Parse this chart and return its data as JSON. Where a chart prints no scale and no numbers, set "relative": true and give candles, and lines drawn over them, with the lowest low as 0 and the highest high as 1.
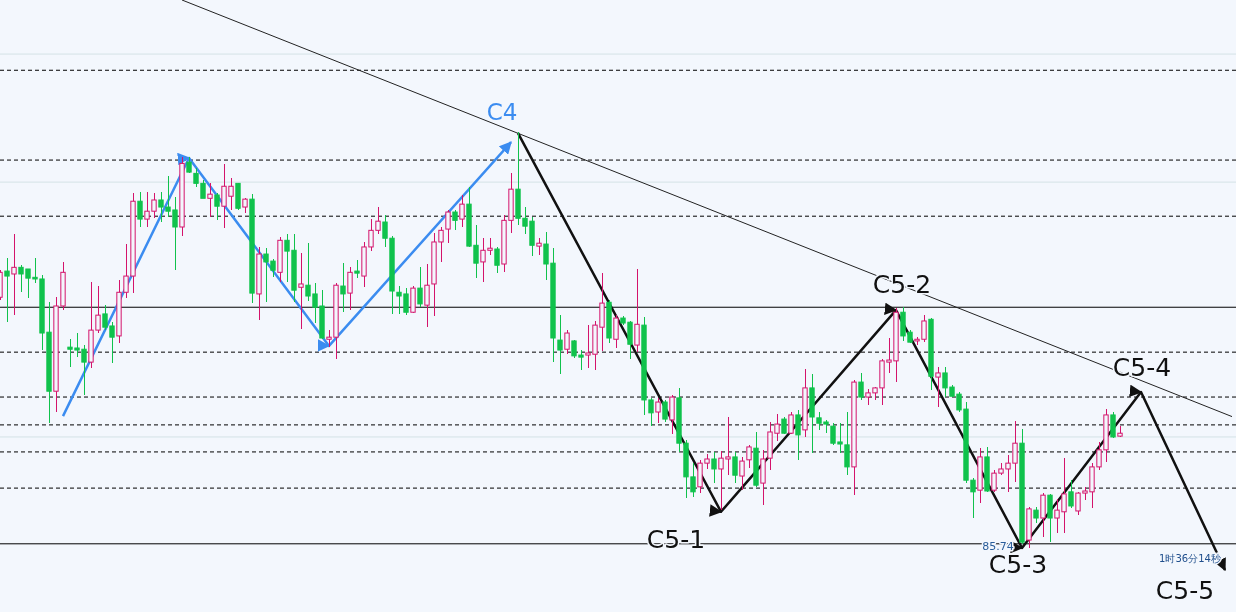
{
  "chart_data": {
    "type": "candlestick",
    "relative": true,
    "categories": [
      null,
      null,
      null,
      null,
      null,
      null,
      null,
      null,
      null,
      null,
      null,
      null,
      null,
      null,
      null,
      null,
      null,
      null,
      null,
      null,
      null,
      null,
      null,
      null,
      null,
      null,
      null,
      null,
      null,
      null,
      null,
      null,
      null,
      null,
      null,
      null,
      null,
      null,
      null,
      null,
      null,
      null,
      null,
      null,
      null,
      null,
      null,
      null,
      null,
      null,
      null,
      null,
      null,
      null,
      null,
      null,
      null,
      null,
      null,
      null,
      null,
      null,
      null,
      null,
      null,
      null,
      null,
      null,
      null,
      null,
      null,
      null,
      null,
      null,
      null,
      null,
      null,
      null,
      null,
      null,
      null,
      null,
      null,
      null,
      null,
      null,
      null,
      null,
      null,
      null,
      null,
      null,
      null,
      null,
      null,
      null,
      null,
      null,
      null,
      null,
      null,
      null,
      null,
      null,
      null,
      null,
      null,
      null,
      null,
      null,
      null,
      null,
      null,
      null,
      null,
      null,
      null,
      null,
      null,
      null,
      null,
      null,
      null,
      null,
      null,
      null,
      null,
      null,
      null,
      null,
      null,
      null,
      null,
      null,
      null,
      null,
      null,
      null,
      null,
      null,
      null,
      null,
      null,
      null,
      null,
      null,
      null,
      null,
      null,
      null,
      null,
      null,
      null,
      null,
      null,
      null,
      null,
      null,
      null,
      null,
      null,
      null,
      null,
      null,
      null,
      null,
      null,
      null,
      null,
      null,
      null,
      null,
      null,
      null,
      null,
      null,
      null
    ],
    "ohlc": [
      [
        0.603,
        0.668,
        0.596,
        0.663
      ],
      [
        0.666,
        0.697,
        0.543,
        0.654
      ],
      [
        0.659,
        0.755,
        0.56,
        0.675
      ],
      [
        0.675,
        0.68,
        0.615,
        0.659
      ],
      [
        0.671,
        0.671,
        0.601,
        0.649
      ],
      [
        0.651,
        0.697,
        0.637,
        0.647
      ],
      [
        0.647,
        0.656,
        0.476,
        0.517
      ],
      [
        0.519,
        0.591,
        0.3,
        0.377
      ],
      [
        0.377,
        0.603,
        0.327,
        0.582
      ],
      [
        0.582,
        0.688,
        0.572,
        0.663
      ],
      [
        0.483,
        0.502,
        0.435,
        0.478
      ],
      [
        0.481,
        0.517,
        0.459,
        0.476
      ],
      [
        0.478,
        0.488,
        0.368,
        0.447
      ],
      [
        0.447,
        0.639,
        0.433,
        0.524
      ],
      [
        0.524,
        0.63,
        0.517,
        0.56
      ],
      [
        0.563,
        0.584,
        0.524,
        0.531
      ],
      [
        0.534,
        0.543,
        0.445,
        0.507
      ],
      [
        0.51,
        0.644,
        0.493,
        0.615
      ],
      [
        0.615,
        0.731,
        0.601,
        0.654
      ],
      [
        0.654,
        0.853,
        0.613,
        0.834
      ],
      [
        0.834,
        0.856,
        0.772,
        0.791
      ],
      [
        0.791,
        0.856,
        0.772,
        0.81
      ],
      [
        0.81,
        0.853,
        0.793,
        0.837
      ],
      [
        0.837,
        0.856,
        0.784,
        0.82
      ],
      [
        0.82,
        0.894,
        0.796,
        0.81
      ],
      [
        0.813,
        0.844,
        0.668,
        0.772
      ],
      [
        0.772,
        0.94,
        0.75,
        0.925
      ],
      [
        0.928,
        0.94,
        0.901,
        0.904
      ],
      [
        0.901,
        0.913,
        0.868,
        0.877
      ],
      [
        0.877,
        0.885,
        0.841,
        0.841
      ],
      [
        0.841,
        0.877,
        0.796,
        0.851
      ],
      [
        0.849,
        0.853,
        0.788,
        0.822
      ],
      [
        0.822,
        0.923,
        0.769,
        0.87
      ],
      [
        0.846,
        0.889,
        0.813,
        0.87
      ],
      [
        0.877,
        0.877,
        0.813,
        0.817
      ],
      [
        0.82,
        0.841,
        0.805,
        0.839
      ],
      [
        0.839,
        0.851,
        0.589,
        0.613
      ],
      [
        0.611,
        0.724,
        0.548,
        0.707
      ],
      [
        0.707,
        0.721,
        0.591,
        0.688
      ],
      [
        0.69,
        0.695,
        0.651,
        0.668
      ],
      [
        0.663,
        0.748,
        0.639,
        0.74
      ],
      [
        0.74,
        0.755,
        0.639,
        0.714
      ],
      [
        0.716,
        0.755,
        0.591,
        0.62
      ],
      [
        0.627,
        0.709,
        0.526,
        0.635
      ],
      [
        0.632,
        0.733,
        0.594,
        0.606
      ],
      [
        0.611,
        0.637,
        0.541,
        0.579
      ],
      [
        0.582,
        0.62,
        0.502,
        0.505
      ],
      [
        0.502,
        0.524,
        0.483,
        0.507
      ],
      [
        0.507,
        0.637,
        0.454,
        0.632
      ],
      [
        0.63,
        0.685,
        0.567,
        0.611
      ],
      [
        0.613,
        0.675,
        0.572,
        0.663
      ],
      [
        0.666,
        0.692,
        0.649,
        0.661
      ],
      [
        0.654,
        0.736,
        0.627,
        0.724
      ],
      [
        0.724,
        0.791,
        0.714,
        0.764
      ],
      [
        0.764,
        0.82,
        0.755,
        0.786
      ],
      [
        0.784,
        0.8,
        0.724,
        0.745
      ],
      [
        0.745,
        0.75,
        0.563,
        0.618
      ],
      [
        0.615,
        0.63,
        0.563,
        0.606
      ],
      [
        0.611,
        0.625,
        0.56,
        0.567
      ],
      [
        0.567,
        0.63,
        0.565,
        0.625
      ],
      [
        0.625,
        0.675,
        0.579,
        0.587
      ],
      [
        0.584,
        0.683,
        0.531,
        0.632
      ],
      [
        0.635,
        0.757,
        0.558,
        0.736
      ],
      [
        0.736,
        0.772,
        0.688,
        0.764
      ],
      [
        0.767,
        0.813,
        0.733,
        0.808
      ],
      [
        0.808,
        0.813,
        0.764,
        0.788
      ],
      [
        0.791,
        0.849,
        0.772,
        0.827
      ],
      [
        0.827,
        0.868,
        0.724,
        0.726
      ],
      [
        0.728,
        0.776,
        0.649,
        0.685
      ],
      [
        0.688,
        0.745,
        0.639,
        0.716
      ],
      [
        0.716,
        0.745,
        0.704,
        0.721
      ],
      [
        0.719,
        0.724,
        0.661,
        0.68
      ],
      [
        0.683,
        0.8,
        0.663,
        0.788
      ],
      [
        0.788,
        0.901,
        0.757,
        0.863
      ],
      [
        0.863,
        1,
        0.776,
        0.793
      ],
      [
        0.793,
        0.82,
        0.755,
        0.774
      ],
      [
        0.786,
        0.796,
        0.702,
        0.728
      ],
      [
        0.726,
        0.745,
        0.704,
        0.733
      ],
      [
        0.731,
        0.76,
        0.644,
        0.683
      ],
      [
        0.685,
        0.721,
        0.447,
        0.505
      ],
      [
        0.5,
        0.56,
        0.418,
        0.476
      ],
      [
        0.478,
        0.524,
        0.466,
        0.517
      ],
      [
        0.498,
        0.5,
        0.457,
        0.462
      ],
      [
        0.464,
        0.476,
        0.428,
        0.459
      ],
      [
        0.464,
        0.536,
        0.433,
        0.469
      ],
      [
        0.466,
        0.546,
        0.428,
        0.536
      ],
      [
        0.531,
        0.661,
        0.474,
        0.589
      ],
      [
        0.591,
        0.596,
        0.493,
        0.505
      ],
      [
        0.502,
        0.56,
        0.481,
        0.553
      ],
      [
        0.553,
        0.558,
        0.536,
        0.541
      ],
      [
        0.543,
        0.546,
        0.454,
        0.49
      ],
      [
        0.488,
        0.671,
        0.471,
        0.538
      ],
      [
        0.536,
        0.555,
        0.32,
        0.356
      ],
      [
        0.356,
        0.361,
        0.293,
        0.325
      ],
      [
        0.327,
        0.361,
        0.3,
        0.351
      ],
      [
        0.351,
        0.356,
        0.303,
        0.31
      ],
      [
        0.308,
        0.368,
        0.274,
        0.363
      ],
      [
        0.361,
        0.385,
        0.231,
        0.252
      ],
      [
        0.252,
        0.26,
        0.12,
        0.171
      ],
      [
        0.171,
        0.204,
        0.123,
        0.135
      ],
      [
        0.147,
        0.212,
        0.132,
        0.204
      ],
      [
        0.204,
        0.226,
        0.19,
        0.214
      ],
      [
        0.214,
        0.231,
        0.156,
        0.19
      ],
      [
        0.19,
        0.233,
        0.091,
        0.216
      ],
      [
        0.214,
        0.315,
        0.175,
        0.219
      ],
      [
        0.219,
        0.231,
        0.156,
        0.175
      ],
      [
        0.173,
        0.219,
        0.139,
        0.209
      ],
      [
        0.212,
        0.248,
        0.192,
        0.243
      ],
      [
        0.24,
        0.279,
        0.147,
        0.151
      ],
      [
        0.156,
        0.236,
        0.103,
        0.214
      ],
      [
        0.216,
        0.303,
        0.188,
        0.279
      ],
      [
        0.276,
        0.322,
        0.257,
        0.298
      ],
      [
        0.31,
        0.315,
        0.274,
        0.276
      ],
      [
        0.276,
        0.327,
        0.274,
        0.32
      ],
      [
        0.32,
        0.332,
        0.212,
        0.272
      ],
      [
        0.284,
        0.43,
        0.267,
        0.385
      ],
      [
        0.385,
        0.418,
        0.228,
        0.315
      ],
      [
        0.313,
        0.327,
        0.284,
        0.3
      ],
      [
        0.303,
        0.308,
        0.276,
        0.298
      ],
      [
        0.293,
        0.3,
        0.248,
        0.252
      ],
      [
        0.255,
        0.3,
        0.228,
        0.25
      ],
      [
        0.248,
        0.327,
        0.175,
        0.195
      ],
      [
        0.195,
        0.404,
        0.127,
        0.399
      ],
      [
        0.399,
        0.421,
        0.356,
        0.363
      ],
      [
        0.363,
        0.382,
        0.344,
        0.373
      ],
      [
        0.373,
        0.387,
        0.356,
        0.385
      ],
      [
        0.385,
        0.454,
        0.344,
        0.45
      ],
      [
        0.447,
        0.505,
        0.421,
        0.452
      ],
      [
        0.45,
        0.577,
        0.399,
        0.567
      ],
      [
        0.567,
        0.579,
        0.498,
        0.51
      ],
      [
        0.519,
        0.524,
        0.493,
        0.495
      ],
      [
        0.498,
        0.507,
        0.488,
        0.502
      ],
      [
        0.502,
        0.56,
        0.495,
        0.546
      ],
      [
        0.55,
        0.553,
        0.38,
        0.413
      ],
      [
        0.411,
        0.435,
        0.339,
        0.421
      ],
      [
        0.421,
        0.435,
        0.363,
        0.385
      ],
      [
        0.387,
        0.392,
        0.363,
        0.365
      ],
      [
        0.37,
        0.375,
        0.327,
        0.332
      ],
      [
        0.334,
        0.351,
        0.156,
        0.163
      ],
      [
        0.163,
        0.168,
        0.072,
        0.135
      ],
      [
        0.139,
        0.24,
        0.108,
        0.219
      ],
      [
        0.219,
        0.243,
        0.135,
        0.137
      ],
      [
        0.139,
        0.188,
        0.135,
        0.18
      ],
      [
        0.18,
        0.204,
        0.175,
        0.19
      ],
      [
        0.19,
        0.224,
        0.135,
        0.204
      ],
      [
        0.204,
        0.305,
        0.159,
        0.252
      ],
      [
        0.252,
        0.286,
        0.01,
        0.014
      ],
      [
        0.019,
        0.099,
        0,
        0.094
      ],
      [
        0.091,
        0.099,
        0.06,
        0.072
      ],
      [
        0.072,
        0.132,
        0.026,
        0.127
      ],
      [
        0.127,
        0.13,
        0.014,
        0.072
      ],
      [
        0.072,
        0.118,
        0.036,
        0.091
      ],
      [
        0.087,
        0.216,
        0.036,
        0.13
      ],
      [
        0.135,
        0.163,
        0.096,
        0.101
      ],
      [
        0.089,
        0.135,
        0.079,
        0.132
      ],
      [
        0.132,
        0.147,
        0.115,
        0.137
      ],
      [
        0.135,
        0.204,
        0.096,
        0.195
      ],
      [
        0.195,
        0.255,
        0.188,
        0.236
      ],
      [
        0.236,
        0.334,
        0.207,
        0.32
      ],
      [
        0.32,
        0.327,
        0.264,
        0.267
      ],
      [
        0.269,
        0.293,
        0.267,
        0.276
      ],
      null,
      null,
      null,
      null,
      null,
      null,
      null,
      null,
      null,
      null,
      null,
      null,
      null,
      null,
      null,
      null
    ],
    "series": [
      {
        "type": "line",
        "color": "#3b8cf0",
        "values": [
          null,
          null,
          null,
          null,
          null,
          null,
          null,
          null,
          null,
          0.317,
          null,
          null,
          null,
          null,
          null,
          null,
          null,
          null,
          null,
          null,
          null,
          null,
          null,
          null,
          null,
          null,
          null,
          0.938,
          null,
          null,
          null,
          null,
          null,
          null,
          null,
          null,
          null,
          null,
          null,
          null,
          null,
          null,
          null,
          null,
          null,
          null,
          null,
          0.486,
          null,
          null,
          null,
          null,
          null,
          null,
          null,
          null,
          null,
          null,
          null,
          null,
          null,
          null,
          null,
          null,
          null,
          null,
          null,
          null,
          null,
          null,
          null,
          null,
          null,
          0.976,
          null,
          null,
          null,
          null,
          null,
          null,
          null,
          null,
          null,
          null,
          null,
          null,
          null,
          null,
          null,
          null,
          null,
          null,
          null,
          null,
          null,
          null,
          null,
          null,
          null,
          null,
          null,
          null,
          null,
          null,
          null,
          null,
          null,
          null,
          null,
          null,
          null,
          null,
          null,
          null,
          null,
          null,
          null,
          null,
          null,
          null,
          null,
          null,
          null,
          null,
          null,
          null,
          null,
          null,
          null,
          null,
          null,
          null,
          null,
          null,
          null,
          null,
          null,
          null,
          null,
          null,
          null,
          null,
          null,
          null,
          null,
          null,
          null,
          null,
          null,
          null,
          null,
          null,
          null,
          null,
          null,
          null,
          null,
          null,
          null,
          null,
          null,
          null,
          null,
          null,
          null,
          null,
          null,
          null,
          null,
          null,
          null,
          null,
          null,
          null,
          null,
          null,
          null
        ]
      },
      {
        "type": "line",
        "color": "#111111",
        "values": [
          null,
          null,
          null,
          null,
          null,
          null,
          null,
          null,
          null,
          null,
          null,
          null,
          null,
          null,
          null,
          null,
          null,
          null,
          null,
          null,
          null,
          null,
          null,
          null,
          null,
          null,
          null,
          null,
          null,
          null,
          null,
          null,
          null,
          null,
          null,
          null,
          null,
          null,
          null,
          null,
          null,
          null,
          null,
          null,
          null,
          null,
          null,
          null,
          null,
          null,
          null,
          null,
          null,
          null,
          null,
          null,
          null,
          null,
          null,
          null,
          null,
          null,
          null,
          null,
          null,
          null,
          null,
          null,
          null,
          null,
          null,
          null,
          null,
          null,
          0.998,
          null,
          null,
          null,
          null,
          null,
          null,
          null,
          null,
          null,
          null,
          null,
          null,
          null,
          null,
          null,
          null,
          null,
          null,
          null,
          null,
          null,
          null,
          null,
          null,
          null,
          null,
          null,
          null,
          0.087,
          null,
          null,
          null,
          null,
          null,
          null,
          null,
          null,
          null,
          null,
          null,
          null,
          null,
          null,
          null,
          null,
          null,
          null,
          null,
          null,
          null,
          null,
          null,
          null,
          0.572,
          null,
          null,
          null,
          null,
          null,
          null,
          null,
          null,
          null,
          null,
          null,
          null,
          null,
          null,
          null,
          null,
          null,
          0,
          null,
          null,
          null,
          null,
          null,
          null,
          null,
          null,
          null,
          null,
          null,
          null,
          null,
          null,
          null,
          null,
          0.375,
          null,
          null,
          null,
          null,
          null,
          null,
          null,
          null,
          null,
          null,
          null,
          -0.053,
          null
        ]
      },
      {
        "type": "line",
        "color": "#222222",
        "values": [
          null,
          null,
          null,
          null,
          null,
          null,
          null,
          null,
          null,
          null,
          null,
          null,
          null,
          null,
          null,
          null,
          null,
          null,
          null,
          null,
          null,
          null,
          null,
          null,
          null,
          null,
          1.318,
          null,
          null,
          null,
          null,
          null,
          null,
          null,
          null,
          null,
          null,
          null,
          null,
          null,
          null,
          null,
          null,
          null,
          null,
          null,
          null,
          null,
          null,
          null,
          null,
          null,
          null,
          null,
          null,
          null,
          null,
          null,
          null,
          null,
          null,
          null,
          null,
          null,
          null,
          null,
          null,
          null,
          null,
          null,
          null,
          null,
          null,
          null,
          null,
          null,
          null,
          null,
          null,
          null,
          null,
          null,
          null,
          null,
          null,
          null,
          null,
          null,
          null,
          null,
          null,
          null,
          null,
          null,
          null,
          null,
          null,
          null,
          null,
          null,
          null,
          null,
          null,
          null,
          null,
          null,
          null,
          null,
          null,
          null,
          null,
          null,
          null,
          null,
          null,
          null,
          null,
          null,
          null,
          null,
          null,
          null,
          null,
          null,
          null,
          null,
          null,
          null,
          null,
          null,
          null,
          null,
          null,
          null,
          null,
          null,
          null,
          null,
          null,
          null,
          null,
          null,
          null,
          null,
          null,
          null,
          null,
          null,
          null,
          null,
          null,
          null,
          null,
          null,
          null,
          null,
          null,
          null,
          null,
          null,
          null,
          null,
          null,
          null,
          null,
          null,
          null,
          null,
          null,
          null,
          null,
          null,
          null,
          null,
          null,
          null,
          0.316
        ]
      }
    ],
    "ref_lines": [
      {
        "axis": "y",
        "value": 1.149,
        "line_style": "dashed",
        "color": "#000000"
      },
      {
        "axis": "y",
        "value": 0.933,
        "line_style": "dashed",
        "color": "#000000"
      },
      {
        "axis": "y",
        "value": 0.798,
        "line_style": "dashed",
        "color": "#000000"
      },
      {
        "axis": "y",
        "value": 0.471,
        "line_style": "dashed",
        "color": "#000000"
      },
      {
        "axis": "y",
        "value": 0.363,
        "line_style": "dashed",
        "color": "#000000"
      },
      {
        "axis": "y",
        "value": 0.296,
        "line_style": "dashed",
        "color": "#000000"
      },
      {
        "axis": "y",
        "value": 0.231,
        "line_style": "dashed",
        "color": "#000000"
      },
      {
        "axis": "y",
        "value": 0.144,
        "line_style": "dashed",
        "color": "#000000"
      },
      {
        "axis": "y",
        "value": 0.579,
        "line_style": "solid",
        "color": "#000000"
      },
      {
        "axis": "y",
        "value": 0.01,
        "line_style": "solid",
        "color": "#000000"
      },
      {
        "axis": "y",
        "value": 1.188,
        "line_style": "solid",
        "color": "#d4e2e6"
      },
      {
        "axis": "y",
        "value": 0.88,
        "line_style": "solid",
        "color": "#d4e2e6"
      },
      {
        "axis": "y",
        "value": 0.267,
        "line_style": "solid",
        "color": "#d4e2e6"
      }
    ],
    "annotations": [
      "C4",
      "C5-1",
      "C5-2",
      "C5-3",
      "C5-4",
      "C5-5",
      "85.74",
      "1时36分14秒"
    ]
  }
}
